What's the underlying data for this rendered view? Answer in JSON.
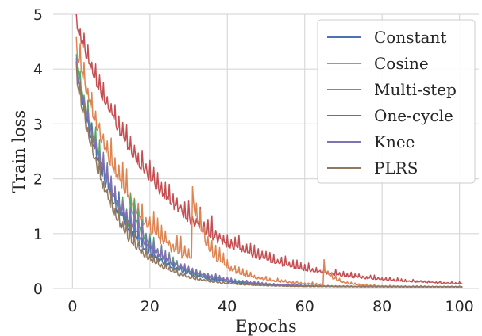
{
  "chart_data": {
    "type": "line",
    "xlabel": "Epochs",
    "ylabel": "Train loss",
    "xlim": [
      -5,
      105
    ],
    "ylim": [
      0,
      5
    ],
    "xticks": [
      0,
      20,
      40,
      60,
      80,
      100
    ],
    "yticks": [
      0,
      1,
      2,
      3,
      4,
      5
    ],
    "grid": true,
    "legend_position": "top-right",
    "series": [
      {
        "name": "Constant",
        "color": "#4c72b0",
        "amp": 4.0,
        "tau": 10.5,
        "floor": 0.03,
        "noise": 0.32,
        "bumps": []
      },
      {
        "name": "Cosine",
        "color": "#dd8452",
        "amp": 4.4,
        "tau": 14.0,
        "floor": 0.03,
        "noise": 0.38,
        "bumps": [
          {
            "start": 31,
            "end": 42,
            "height": 1.15,
            "decay": 4.0
          },
          {
            "start": 65,
            "end": 70,
            "height": 0.3,
            "decay": 3.0
          }
        ]
      },
      {
        "name": "Multi-step",
        "color": "#55a868",
        "amp": 4.1,
        "tau": 11.0,
        "floor": 0.03,
        "noise": 0.3,
        "bumps": [
          {
            "start": 15,
            "end": 20,
            "height": 0.4,
            "decay": 3.0
          }
        ]
      },
      {
        "name": "One-cycle",
        "color": "#c44e52",
        "amp": 4.8,
        "tau": 22.0,
        "floor": 0.04,
        "noise": 0.3,
        "bumps": []
      },
      {
        "name": "Knee",
        "color": "#8172b3",
        "amp": 4.0,
        "tau": 11.5,
        "floor": 0.03,
        "noise": 0.28,
        "bumps": []
      },
      {
        "name": "PLRS",
        "color": "#937860",
        "amp": 3.9,
        "tau": 9.5,
        "floor": 0.03,
        "noise": 0.28,
        "bumps": []
      }
    ]
  }
}
